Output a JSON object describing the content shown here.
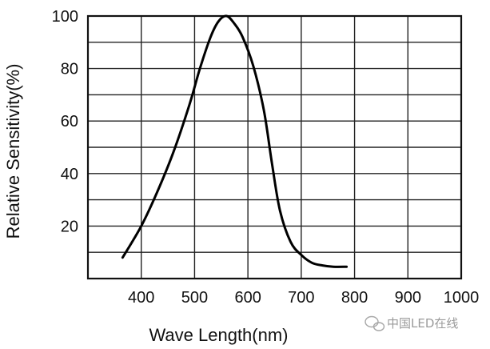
{
  "chart_data": {
    "type": "line",
    "title": "",
    "xlabel": "Wave Length(nm)",
    "ylabel": "Relative Sensitivity(%)",
    "xlim": [
      300,
      1000
    ],
    "ylim": [
      0,
      100
    ],
    "x_ticks": [
      400,
      500,
      600,
      700,
      800,
      900,
      1000
    ],
    "y_ticks": [
      20,
      40,
      60,
      80,
      100
    ],
    "grid": true,
    "legend": "none",
    "series": [
      {
        "x": [
          365,
          400,
          430,
          460,
          490,
          510,
          530,
          545,
          560,
          575,
          590,
          610,
          630,
          645,
          660,
          680,
          700,
          720,
          740,
          760,
          785
        ],
        "y": [
          8,
          20,
          33,
          48,
          66,
          80,
          92,
          98,
          100,
          97,
          92,
          81,
          64,
          44,
          26,
          14,
          9,
          6,
          5,
          4.5,
          4.5
        ]
      }
    ]
  },
  "watermark": {
    "text": "中国LED在线"
  }
}
